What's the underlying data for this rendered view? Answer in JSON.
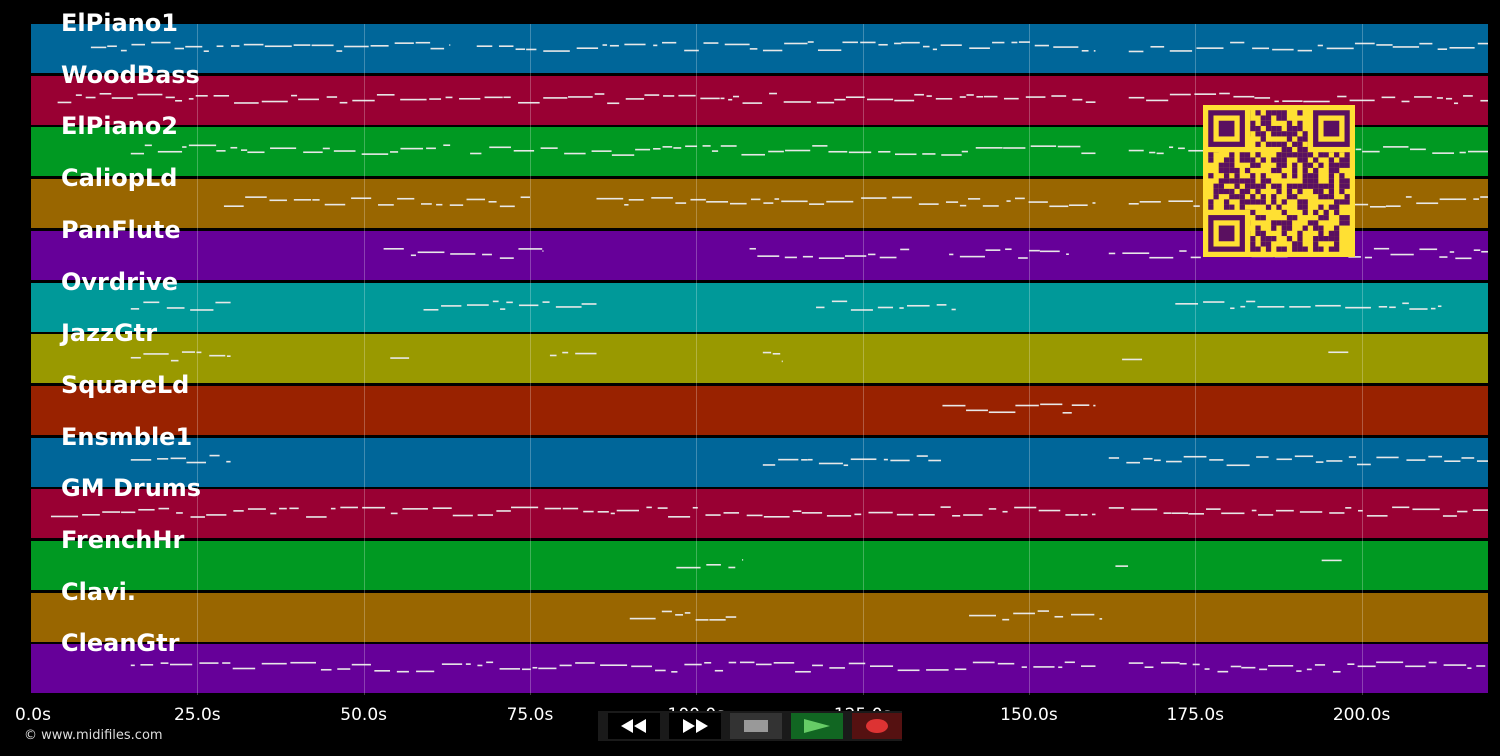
{
  "tracks": [
    {
      "name": "ElPiano1",
      "color": "#006699"
    },
    {
      "name": "WoodBass",
      "color": "#990033"
    },
    {
      "name": "ElPiano2",
      "color": "#009922"
    },
    {
      "name": "CaliopLd",
      "color": "#996600"
    },
    {
      "name": "PanFlute",
      "color": "#660099"
    },
    {
      "name": "Ovrdrive",
      "color": "#009999"
    },
    {
      "name": "JazzGtr",
      "color": "#999900"
    },
    {
      "name": "SquareLd",
      "color": "#992200"
    },
    {
      "name": "Ensmble1",
      "color": "#006699"
    },
    {
      "name": "GM Drums",
      "color": "#990033"
    },
    {
      "name": "FrenchHr",
      "color": "#009922"
    },
    {
      "name": "Clavi.",
      "color": "#996600"
    },
    {
      "name": "CleanGtr",
      "color": "#660099"
    }
  ],
  "timeline": {
    "start_seconds": 0,
    "end_seconds": 219,
    "ticks": [
      "0.0s",
      "25.0s",
      "50.0s",
      "75.0s",
      "100.0s",
      "125.0s",
      "150.0s",
      "175.0s",
      "200.0s"
    ]
  },
  "transport": {
    "rewind_icon": "rewind-icon",
    "forward_icon": "fast-forward-icon",
    "stop_icon": "stop-icon",
    "play_icon": "play-icon",
    "record_icon": "record-icon"
  },
  "copyright": "© www.midifiles.com",
  "qr_code": {
    "color_fg": "#5a1060",
    "color_bg": "#ffe033"
  }
}
